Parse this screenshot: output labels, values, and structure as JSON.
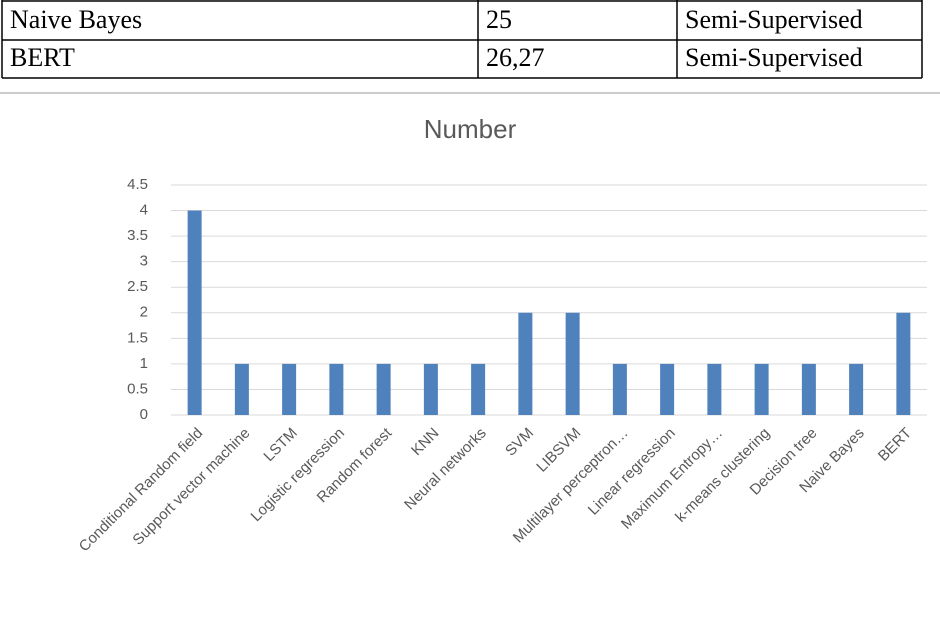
{
  "table": {
    "rows": [
      [
        "Naive Bayes",
        "25",
        "Semi-Supervised"
      ],
      [
        "BERT",
        "26,27",
        "Semi-Supervised"
      ]
    ]
  },
  "chart_data": {
    "type": "bar",
    "title": "Number",
    "categories": [
      "Conditional Random field",
      "Support vector machine",
      "LSTM",
      "Logistic regression",
      "Random forest",
      "KNN",
      "Neural networks",
      "SVM",
      "LIBSVM",
      "Multilayer perceptron…",
      "Linear regression",
      "Maximum Entropy…",
      "k-means clustering",
      "Decision tree",
      "Naive Bayes",
      "BERT"
    ],
    "values": [
      4,
      1,
      1,
      1,
      1,
      1,
      1,
      2,
      2,
      1,
      1,
      1,
      1,
      1,
      1,
      2
    ],
    "color": "#4f81bd",
    "ylim": [
      0,
      4.5
    ],
    "yticks": [
      0,
      0.5,
      1,
      1.5,
      2,
      2.5,
      3,
      3.5,
      4,
      4.5
    ],
    "grid": true
  }
}
